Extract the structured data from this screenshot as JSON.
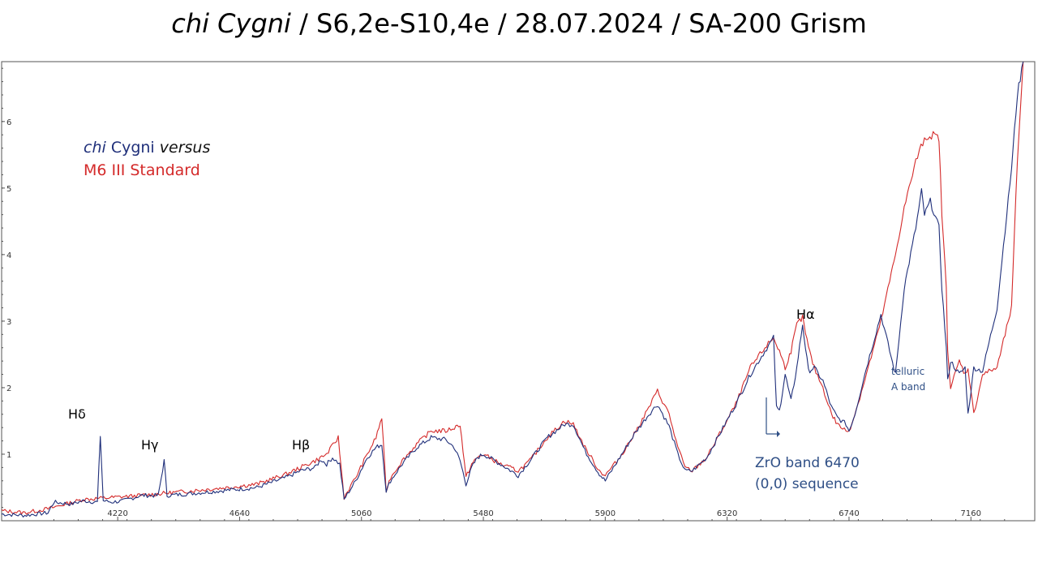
{
  "title": {
    "star": "chi Cygni",
    "rest": " / S6,2e-S10,4e / 28.07.2024 / SA-200 Grism"
  },
  "legend": {
    "series1_italic": "chi",
    "series1_text": " Cygni ",
    "series1_italic2": "versus",
    "series2_text": "M6 III Standard"
  },
  "colors": {
    "chi_cygni": "#1f2f7a",
    "standard": "#d42a2a",
    "axis": "#555555",
    "annotation_blue": "#2f4f86"
  },
  "annotations": {
    "hdelta": "Hδ",
    "hgamma": "Hγ",
    "hbeta": "Hβ",
    "halpha": "Hα",
    "zro_line1": "ZrO band 6470",
    "zro_line2": "(0,0) sequence",
    "telluric_line1": "telluric",
    "telluric_line2": "A band"
  },
  "chart_data": {
    "type": "line",
    "xlim": [
      3820,
      7380
    ],
    "ylim": [
      0,
      6.9
    ],
    "x_ticks": [
      4220,
      4640,
      5060,
      5480,
      5900,
      6320,
      6740,
      7160
    ],
    "y_ticks": [
      1,
      2,
      3,
      4,
      5,
      6
    ],
    "series": [
      {
        "key": "chi_cygni",
        "x": [
          3820,
          3900,
          3980,
          4000,
          4060,
          4100,
          4150,
          4160,
          4170,
          4200,
          4240,
          4300,
          4360,
          4380,
          4390,
          4450,
          4500,
          4600,
          4700,
          4800,
          4850,
          4900,
          4920,
          4940,
          4960,
          4985,
          5000,
          5040,
          5080,
          5110,
          5130,
          5145,
          5160,
          5200,
          5250,
          5300,
          5350,
          5380,
          5400,
          5420,
          5440,
          5460,
          5480,
          5540,
          5600,
          5640,
          5700,
          5760,
          5790,
          5830,
          5880,
          5900,
          5950,
          6000,
          6050,
          6080,
          6120,
          6150,
          6175,
          6200,
          6250,
          6300,
          6350,
          6400,
          6450,
          6480,
          6490,
          6500,
          6520,
          6540,
          6560,
          6580,
          6600,
          6620,
          6650,
          6680,
          6700,
          6730,
          6740,
          6760,
          6800,
          6850,
          6880,
          6900,
          6930,
          6970,
          6990,
          7000,
          7020,
          7050,
          7060,
          7075,
          7080,
          7090,
          7120,
          7140,
          7150,
          7170,
          7200,
          7250,
          7300,
          7320,
          7340
        ],
        "y": [
          0.1,
          0.08,
          0.12,
          0.28,
          0.25,
          0.3,
          0.28,
          1.28,
          0.3,
          0.28,
          0.3,
          0.38,
          0.38,
          0.9,
          0.38,
          0.4,
          0.42,
          0.46,
          0.5,
          0.65,
          0.75,
          0.8,
          0.92,
          0.85,
          0.95,
          0.85,
          0.32,
          0.6,
          0.95,
          1.1,
          1.15,
          0.45,
          0.6,
          0.85,
          1.1,
          1.25,
          1.22,
          1.1,
          0.9,
          0.55,
          0.8,
          0.95,
          1.0,
          0.85,
          0.68,
          0.9,
          1.25,
          1.45,
          1.45,
          1.05,
          0.7,
          0.6,
          0.95,
          1.3,
          1.6,
          1.75,
          1.42,
          1.0,
          0.75,
          0.75,
          0.95,
          1.35,
          1.75,
          2.2,
          2.55,
          2.75,
          1.7,
          1.65,
          2.2,
          1.8,
          2.3,
          2.95,
          2.25,
          2.3,
          2.1,
          1.7,
          1.55,
          1.45,
          1.35,
          1.6,
          2.3,
          3.1,
          2.55,
          2.2,
          3.5,
          4.4,
          4.95,
          4.6,
          4.8,
          4.4,
          3.5,
          2.6,
          2.1,
          2.4,
          2.2,
          2.3,
          1.6,
          2.3,
          2.25,
          3.2,
          5.3,
          6.4,
          6.9
        ]
      },
      {
        "key": "standard",
        "x": [
          3820,
          3900,
          3980,
          4040,
          4100,
          4200,
          4300,
          4400,
          4500,
          4600,
          4700,
          4800,
          4850,
          4900,
          4940,
          4980,
          5000,
          5040,
          5080,
          5110,
          5130,
          5145,
          5160,
          5200,
          5250,
          5300,
          5350,
          5380,
          5400,
          5420,
          5440,
          5460,
          5480,
          5540,
          5600,
          5640,
          5700,
          5760,
          5790,
          5830,
          5880,
          5900,
          5950,
          6000,
          6050,
          6080,
          6120,
          6150,
          6175,
          6200,
          6250,
          6300,
          6350,
          6400,
          6450,
          6480,
          6500,
          6520,
          6540,
          6560,
          6580,
          6600,
          6620,
          6650,
          6680,
          6700,
          6730,
          6740,
          6760,
          6800,
          6850,
          6880,
          6900,
          6930,
          6970,
          7000,
          7030,
          7050,
          7060,
          7075,
          7080,
          7090,
          7120,
          7140,
          7150,
          7170,
          7200,
          7250,
          7300,
          7320,
          7340
        ],
        "y": [
          0.15,
          0.12,
          0.18,
          0.25,
          0.32,
          0.35,
          0.38,
          0.42,
          0.46,
          0.5,
          0.55,
          0.7,
          0.8,
          0.9,
          1.0,
          1.25,
          0.35,
          0.65,
          1.0,
          1.25,
          1.55,
          0.45,
          0.65,
          0.9,
          1.15,
          1.35,
          1.35,
          1.4,
          1.45,
          0.65,
          0.85,
          0.95,
          1.0,
          0.85,
          0.75,
          0.9,
          1.25,
          1.5,
          1.45,
          1.1,
          0.75,
          0.68,
          0.95,
          1.3,
          1.7,
          1.95,
          1.6,
          1.1,
          0.8,
          0.75,
          0.95,
          1.35,
          1.75,
          2.3,
          2.6,
          2.75,
          2.55,
          2.3,
          2.55,
          2.95,
          3.05,
          2.6,
          2.3,
          2.0,
          1.6,
          1.45,
          1.35,
          1.35,
          1.6,
          2.2,
          3.0,
          3.6,
          4.0,
          4.7,
          5.4,
          5.75,
          5.8,
          5.75,
          4.6,
          3.5,
          2.6,
          2.0,
          2.4,
          2.2,
          2.3,
          1.6,
          2.2,
          2.3,
          3.2,
          5.4,
          6.9
        ]
      }
    ]
  }
}
